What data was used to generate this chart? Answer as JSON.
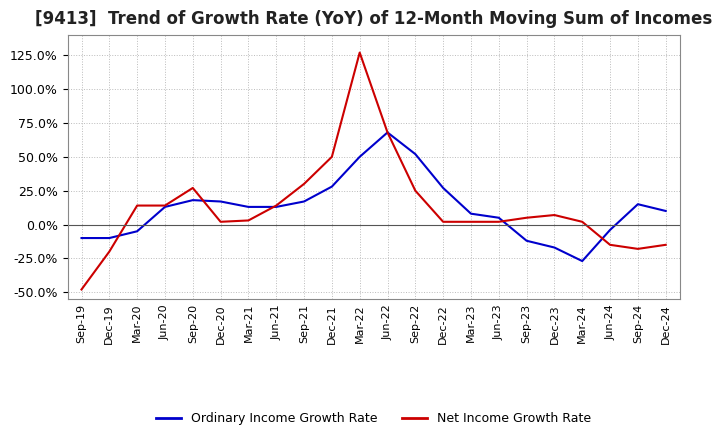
{
  "title": "[9413]  Trend of Growth Rate (YoY) of 12-Month Moving Sum of Incomes",
  "title_fontsize": 12,
  "background_color": "#ffffff",
  "grid_color": "#bbbbbb",
  "x_labels": [
    "Sep-19",
    "Dec-19",
    "Mar-20",
    "Jun-20",
    "Sep-20",
    "Dec-20",
    "Mar-21",
    "Jun-21",
    "Sep-21",
    "Dec-21",
    "Mar-22",
    "Jun-22",
    "Sep-22",
    "Dec-22",
    "Mar-23",
    "Jun-23",
    "Sep-23",
    "Dec-23",
    "Mar-24",
    "Jun-24",
    "Sep-24",
    "Dec-24"
  ],
  "ordinary_income": [
    -0.1,
    -0.1,
    -0.05,
    0.13,
    0.18,
    0.17,
    0.13,
    0.13,
    0.17,
    0.28,
    0.5,
    0.68,
    0.52,
    0.27,
    0.08,
    0.05,
    -0.12,
    -0.17,
    -0.27,
    -0.04,
    0.15,
    0.1
  ],
  "net_income": [
    -0.48,
    -0.2,
    0.14,
    0.14,
    0.27,
    0.02,
    0.03,
    0.14,
    0.3,
    0.5,
    1.27,
    0.68,
    0.25,
    0.02,
    0.02,
    0.02,
    0.05,
    0.07,
    0.02,
    -0.15,
    -0.18,
    -0.15
  ],
  "ordinary_color": "#0000cc",
  "net_color": "#cc0000",
  "ylim": [
    -0.55,
    1.4
  ],
  "yticks": [
    -0.5,
    -0.25,
    0.0,
    0.25,
    0.5,
    0.75,
    1.0,
    1.25
  ],
  "legend_labels": [
    "Ordinary Income Growth Rate",
    "Net Income Growth Rate"
  ],
  "line_width": 1.5
}
